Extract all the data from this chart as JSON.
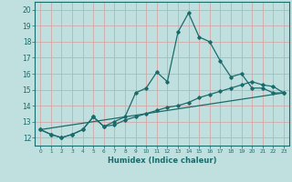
{
  "title": "",
  "xlabel": "Humidex (Indice chaleur)",
  "ylabel": "",
  "bg_color": "#c0e0e0",
  "line_color": "#1a6b6b",
  "grid_color": "#d4a8a8",
  "ylim": [
    11.5,
    20.5
  ],
  "xlim": [
    -0.5,
    23.5
  ],
  "yticks": [
    12,
    13,
    14,
    15,
    16,
    17,
    18,
    19,
    20
  ],
  "xticks": [
    0,
    1,
    2,
    3,
    4,
    5,
    6,
    7,
    8,
    9,
    10,
    11,
    12,
    13,
    14,
    15,
    16,
    17,
    18,
    19,
    20,
    21,
    22,
    23
  ],
  "xtick_labels": [
    "0",
    "1",
    "2",
    "3",
    "4",
    "5",
    "6",
    "7",
    "8",
    "9",
    "10",
    "11",
    "12",
    "13",
    "14",
    "15",
    "16",
    "17",
    "18",
    "19",
    "20",
    "21",
    "22",
    "23"
  ],
  "series1_x": [
    0,
    1,
    2,
    3,
    4,
    5,
    6,
    7,
    8,
    9,
    10,
    11,
    12,
    13,
    14,
    15,
    16,
    17,
    18,
    19,
    20,
    21,
    22,
    23
  ],
  "series1_y": [
    12.5,
    12.2,
    12.0,
    12.2,
    12.5,
    13.3,
    12.7,
    13.0,
    13.3,
    14.8,
    15.1,
    16.1,
    15.5,
    18.6,
    19.8,
    18.3,
    18.0,
    16.8,
    15.8,
    16.0,
    15.1,
    15.1,
    14.8,
    14.8
  ],
  "series2_x": [
    0,
    1,
    2,
    3,
    4,
    5,
    6,
    7,
    8,
    9,
    10,
    11,
    12,
    13,
    14,
    15,
    16,
    17,
    18,
    19,
    20,
    21,
    22,
    23
  ],
  "series2_y": [
    12.5,
    12.2,
    12.0,
    12.2,
    12.5,
    13.3,
    12.7,
    12.8,
    13.1,
    13.3,
    13.5,
    13.7,
    13.9,
    14.0,
    14.2,
    14.5,
    14.7,
    14.9,
    15.1,
    15.3,
    15.5,
    15.3,
    15.2,
    14.8
  ],
  "series3_x": [
    0,
    23
  ],
  "series3_y": [
    12.5,
    14.8
  ]
}
